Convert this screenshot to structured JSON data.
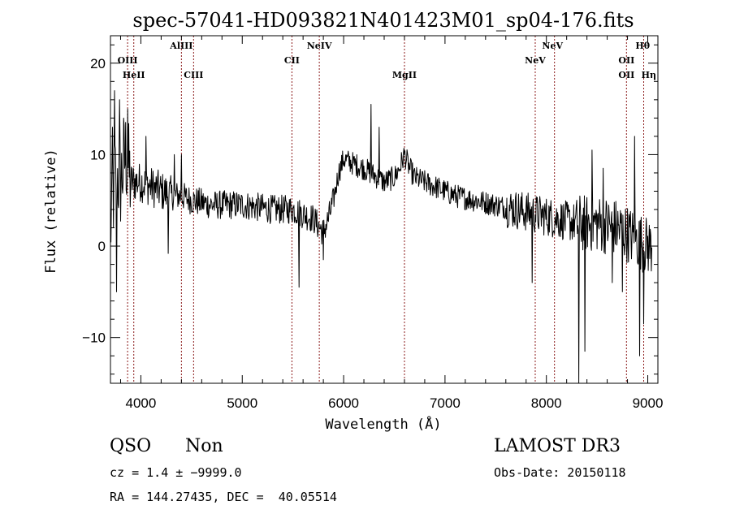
{
  "chart_data": {
    "type": "line",
    "title": "spec-57041-HD093821N401423M01_sp04-176.fits",
    "xlabel": "Wavelength (Å)",
    "ylabel": "Flux (relative)",
    "xlim": [
      3700,
      9100
    ],
    "ylim": [
      -15,
      23
    ],
    "xticks": [
      4000,
      5000,
      6000,
      7000,
      8000,
      9000
    ],
    "yticks": [
      -10,
      0,
      10,
      20
    ],
    "grid": false,
    "line_color": "#000000",
    "marker_color": "#8b1a1a",
    "spectral_lines": [
      {
        "name": "OIII",
        "wavelength": 3869,
        "row": 2
      },
      {
        "name": "HeII",
        "wavelength": 3930,
        "row": 3
      },
      {
        "name": "AlIII",
        "wavelength": 4400,
        "row": 1
      },
      {
        "name": "CIII",
        "wavelength": 4520,
        "row": 3
      },
      {
        "name": "CII",
        "wavelength": 5490,
        "row": 2
      },
      {
        "name": "NeIV",
        "wavelength": 5760,
        "row": 1
      },
      {
        "name": "MgII",
        "wavelength": 6600,
        "row": 3
      },
      {
        "name": "NeV",
        "wavelength": 7890,
        "row": 2
      },
      {
        "name": "NeV",
        "wavelength": 8060,
        "row": 1
      },
      {
        "name": "OII",
        "wavelength": 8790,
        "row": 2
      },
      {
        "name": "OII",
        "wavelength": 8790,
        "row": 3
      },
      {
        "name": "Hθ",
        "wavelength": 8950,
        "row": 1
      },
      {
        "name": "Hη",
        "wavelength": 9010,
        "row": 3
      }
    ],
    "marker_positions": [
      3869,
      3930,
      4400,
      4520,
      5490,
      5760,
      6600,
      7890,
      8080,
      8790,
      8960
    ],
    "anchors": [
      [
        3700,
        2
      ],
      [
        3750,
        8
      ],
      [
        3800,
        7
      ],
      [
        3850,
        10
      ],
      [
        3900,
        7
      ],
      [
        4000,
        7
      ],
      [
        4100,
        6.5
      ],
      [
        4200,
        6
      ],
      [
        4300,
        5.5
      ],
      [
        4400,
        5.5
      ],
      [
        4500,
        5
      ],
      [
        4700,
        4.5
      ],
      [
        5000,
        4.5
      ],
      [
        5300,
        4
      ],
      [
        5500,
        4
      ],
      [
        5700,
        3
      ],
      [
        5800,
        1.5
      ],
      [
        5850,
        3
      ],
      [
        5900,
        5
      ],
      [
        5950,
        8
      ],
      [
        6000,
        9.5
      ],
      [
        6200,
        8.5
      ],
      [
        6400,
        7
      ],
      [
        6500,
        7.5
      ],
      [
        6550,
        8.5
      ],
      [
        6600,
        10
      ],
      [
        6650,
        8.5
      ],
      [
        6700,
        7.5
      ],
      [
        6900,
        6.5
      ],
      [
        7100,
        5.5
      ],
      [
        7300,
        5
      ],
      [
        7500,
        4.5
      ],
      [
        7700,
        4
      ],
      [
        7900,
        3.5
      ],
      [
        8100,
        3
      ],
      [
        8300,
        2.5
      ],
      [
        8500,
        2.5
      ],
      [
        8700,
        2
      ],
      [
        8850,
        1
      ],
      [
        9000,
        0
      ],
      [
        9050,
        0
      ]
    ],
    "spikes": [
      [
        3720,
        13
      ],
      [
        3740,
        17
      ],
      [
        3760,
        -5
      ],
      [
        3790,
        16
      ],
      [
        3830,
        14
      ],
      [
        3870,
        15
      ],
      [
        4050,
        12
      ],
      [
        4270,
        -0.8
      ],
      [
        4330,
        10
      ],
      [
        4400,
        10
      ],
      [
        5560,
        -4.5
      ],
      [
        5800,
        -1.5
      ],
      [
        6270,
        15.5
      ],
      [
        6350,
        13
      ],
      [
        7860,
        -4
      ],
      [
        8320,
        -15
      ],
      [
        8380,
        -11.5
      ],
      [
        8450,
        10.5
      ],
      [
        8560,
        8.5
      ],
      [
        8650,
        -4
      ],
      [
        8750,
        -5
      ],
      [
        8870,
        12
      ],
      [
        8920,
        -12
      ],
      [
        8960,
        -8.5
      ]
    ],
    "annotations": {
      "class": "QSO",
      "subclass": "Non",
      "survey": "LAMOST DR3",
      "cz": "cz = 1.4 ± −9999.0",
      "obs_date": "Obs-Date: 20150118",
      "coords": "RA = 144.27435, DEC =  40.05514"
    }
  }
}
